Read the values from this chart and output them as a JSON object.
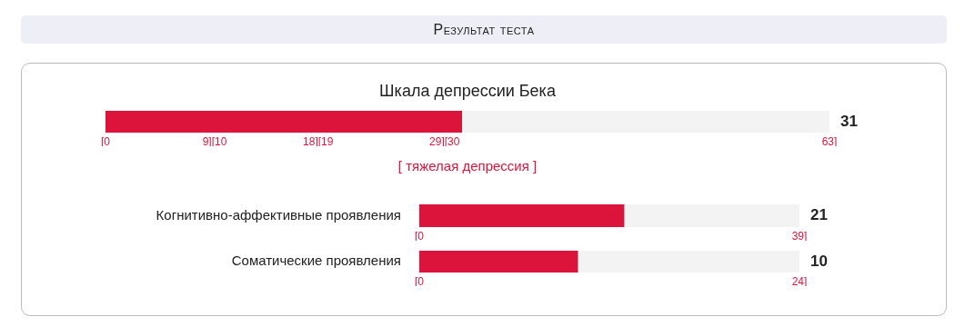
{
  "chart_data": [
    {
      "type": "other",
      "title": "Результат теста"
    },
    {
      "type": "bar",
      "orientation": "horizontal",
      "title": "Шкала депрессии Бека",
      "categories": [
        null
      ],
      "values": [
        31
      ],
      "color": "#dc143c",
      "xlim": [
        0,
        63
      ],
      "xticks": [
        {
          "value": 0,
          "label": "[0"
        },
        {
          "value": 9.5,
          "label": "9][10"
        },
        {
          "value": 18.5,
          "label": "18][19"
        },
        {
          "value": 29.5,
          "label": "29][30"
        },
        {
          "value": 63,
          "label": "63]"
        }
      ],
      "annotations": [
        "31",
        "[ тяжелая депрессия ]"
      ]
    },
    {
      "type": "bar",
      "orientation": "horizontal",
      "categories": [
        "Когнитивно-аффективные проявления"
      ],
      "values": [
        21
      ],
      "color": "#dc143c",
      "xlim": [
        0,
        39
      ],
      "xticks": [
        {
          "value": 0,
          "label": "[0"
        },
        {
          "value": 39,
          "label": "39]"
        }
      ],
      "annotations": [
        "21"
      ]
    },
    {
      "type": "bar",
      "orientation": "horizontal",
      "categories": [
        "Соматические проявления"
      ],
      "values": [
        10
      ],
      "color": "#dc143c",
      "xlim": [
        0,
        24
      ],
      "xticks": [
        {
          "value": 0,
          "label": "[0"
        },
        {
          "value": 24,
          "label": "24]"
        }
      ],
      "annotations": [
        "10"
      ]
    }
  ]
}
